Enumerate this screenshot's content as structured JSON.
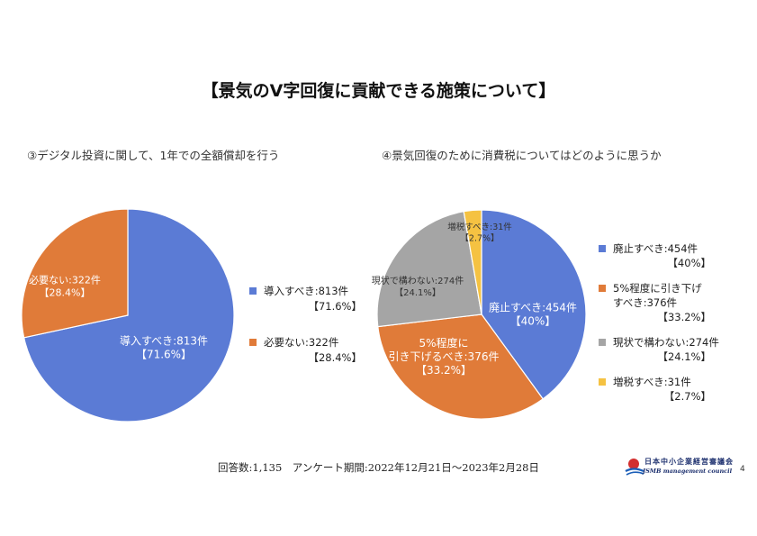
{
  "title": "【景気のV字回復に貢献できる施策について】",
  "footer": "回答数:1,135　アンケート期間:2022年12月21日～2023年2月28日",
  "logo": {
    "name": "日本中小企業経営審議会",
    "sub": "JSMB management council"
  },
  "page_number": "4",
  "chart_data": [
    {
      "type": "pie",
      "title": "③デジタル投資に関して、1年での全額償却を行う",
      "categories": [
        "導入すべき",
        "必要ない"
      ],
      "values": [
        813,
        322
      ],
      "percent_labels": [
        "71.6%",
        "28.4%"
      ],
      "slice_labels": [
        {
          "line1": "導入すべき:813件",
          "line2": "【71.6%】"
        },
        {
          "line1": "必要ない:322件",
          "line2": "【28.4%】"
        }
      ],
      "legend": [
        {
          "line1": "導入すべき:813件",
          "line2": "【71.6%】"
        },
        {
          "line1": "必要ない:322件",
          "line2": "【28.4%】"
        }
      ],
      "colors": [
        "#5b7bd5",
        "#e07b39"
      ],
      "legend_position": "right"
    },
    {
      "type": "pie",
      "title": "④景気回復のために消費税についてはどのように思うか",
      "categories": [
        "廃止すべき",
        "5%程度に引き下げすべき",
        "現状で構わない",
        "増税すべき"
      ],
      "values": [
        454,
        376,
        274,
        31
      ],
      "percent_labels": [
        "40%",
        "33.2%",
        "24.1%",
        "2.7%"
      ],
      "slice_labels": [
        {
          "line1": "廃止すべき:454件",
          "line2": "【40%】"
        },
        {
          "line1": "5%程度に",
          "line2": "引き下げるべき:376件",
          "line3": "【33.2%】"
        },
        {
          "line1": "現状で構わない:274件",
          "line2": "【24.1%】"
        },
        {
          "line1": "増税すべき:31件",
          "line2": "【2.7%】"
        }
      ],
      "legend": [
        {
          "line1": "廃止すべき:454件",
          "line2": "【40%】"
        },
        {
          "line1": "5%程度に引き下げ",
          "line2": "すべき:376件",
          "line3": "【33.2%】"
        },
        {
          "line1": "現状で構わない:274件",
          "line2": "【24.1%】"
        },
        {
          "line1": "増税すべき:31件",
          "line2": "【2.7%】"
        }
      ],
      "colors": [
        "#5b7bd5",
        "#e07b39",
        "#a5a5a5",
        "#f5c242"
      ],
      "legend_position": "right"
    }
  ]
}
